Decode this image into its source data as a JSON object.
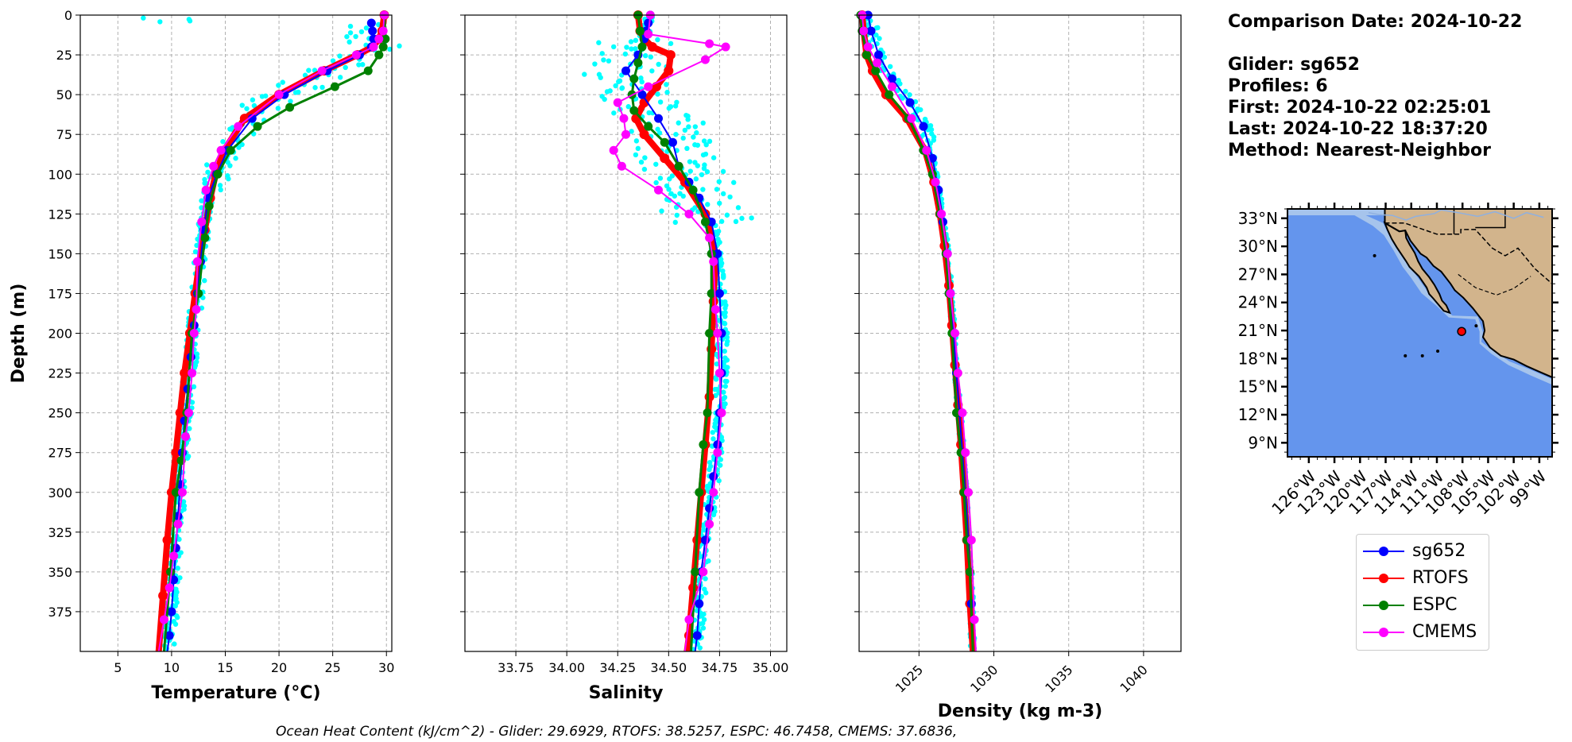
{
  "info": {
    "comparison_date": "Comparison Date: 2024-10-22",
    "glider": "Glider: sg652",
    "profiles": "Profiles: 6",
    "first": "First: 2024-10-22 02:25:01",
    "last": "Last: 2024-10-22 18:37:20",
    "method": "Method: Nearest-Neighbor"
  },
  "footer": "Ocean Heat Content (kJ/cm^2) - Glider: 29.6929,  RTOFS: 38.5257,  ESPC: 46.7458,  CMEMS: 37.6836,",
  "colors": {
    "glider": "#0000ff",
    "glider_scatter": "#00ffff",
    "rtofs": "#ff0000",
    "espc": "#008000",
    "cmems": "#ff00ff",
    "ocean": "#6495ed",
    "shelf": "#a6c4ec",
    "land": "#d2b48c"
  },
  "legend": [
    {
      "label": "sg652",
      "color": "#0000ff"
    },
    {
      "label": "RTOFS",
      "color": "#ff0000"
    },
    {
      "label": "ESPC",
      "color": "#008000"
    },
    {
      "label": "CMEMS",
      "color": "#ff00ff"
    }
  ],
  "chart_data": [
    {
      "type": "line",
      "xlabel": "Temperature (°C)",
      "ylabel": "Depth (m)",
      "xlim": [
        1.5,
        30.5
      ],
      "ylim": [
        400,
        0
      ],
      "xticks": [
        5,
        10,
        15,
        20,
        25,
        30
      ],
      "yticks": [
        0,
        25,
        50,
        75,
        100,
        125,
        150,
        175,
        200,
        225,
        250,
        275,
        300,
        325,
        350,
        375
      ],
      "grid": true,
      "series": [
        {
          "name": "sg652",
          "x": [
            28.6,
            28.7,
            28.8,
            28.6,
            27.5,
            24.5,
            20.5,
            17.5,
            15.2,
            14.2,
            13.4,
            13.0,
            12.7,
            12.4,
            12.1,
            11.8,
            11.5,
            11.2,
            11.0,
            10.8,
            10.6,
            10.4,
            10.2,
            10.0,
            9.8,
            9.6
          ],
          "y": [
            5,
            10,
            15,
            20,
            25,
            35,
            50,
            65,
            85,
            100,
            115,
            135,
            155,
            175,
            195,
            215,
            235,
            255,
            275,
            295,
            315,
            335,
            355,
            375,
            390,
            400
          ]
        },
        {
          "name": "RTOFS",
          "x": [
            29.8,
            29.6,
            29.3,
            28.7,
            27.3,
            24.2,
            20.0,
            16.8,
            14.9,
            14.1,
            13.6,
            13.1,
            12.6,
            12.2,
            11.7,
            11.2,
            10.8,
            10.4,
            10.0,
            9.6,
            9.2,
            8.8
          ],
          "y": [
            0,
            10,
            15,
            20,
            25,
            35,
            50,
            65,
            85,
            100,
            115,
            135,
            155,
            175,
            200,
            225,
            250,
            275,
            300,
            330,
            365,
            400
          ]
        },
        {
          "name": "ESPC",
          "x": [
            29.8,
            29.9,
            29.7,
            29.3,
            28.3,
            25.2,
            21.0,
            18.0,
            15.5,
            14.3,
            13.5,
            13.1,
            12.5,
            11.9,
            11.4,
            10.9,
            10.4,
            9.9,
            9.3
          ],
          "y": [
            0,
            15,
            20,
            25,
            35,
            45,
            58,
            70,
            85,
            100,
            120,
            140,
            175,
            200,
            250,
            280,
            300,
            350,
            400
          ]
        },
        {
          "name": "CMEMS",
          "x": [
            29.8,
            29.7,
            29.3,
            28.8,
            27.2,
            24.0,
            20.0,
            16.2,
            14.6,
            13.9,
            13.2,
            12.8,
            12.4,
            12.3,
            12.1,
            11.9,
            11.6,
            11.3,
            11.0,
            10.6,
            10.2,
            9.8,
            9.3,
            8.8
          ],
          "y": [
            0,
            10,
            15,
            20,
            25,
            35,
            50,
            70,
            85,
            95,
            110,
            130,
            155,
            185,
            200,
            225,
            250,
            265,
            300,
            320,
            340,
            360,
            380,
            400
          ]
        }
      ],
      "cast_scatter": {
        "name": "sg652 profiles",
        "t_min_offset": -1.5,
        "t_max_offset": 1.5
      }
    },
    {
      "type": "line",
      "xlabel": "Salinity",
      "xlim": [
        33.5,
        35.08
      ],
      "ylim": [
        400,
        0
      ],
      "xticks": [
        33.75,
        34.0,
        34.25,
        34.5,
        34.75,
        35.0
      ],
      "yticks": [
        0,
        25,
        50,
        75,
        100,
        125,
        150,
        175,
        200,
        225,
        250,
        275,
        300,
        325,
        350,
        375
      ],
      "grid": true,
      "series": [
        {
          "name": "sg652",
          "x": [
            34.41,
            34.4,
            34.39,
            34.38,
            34.35,
            34.29,
            34.37,
            34.45,
            34.52,
            34.55,
            34.6,
            34.65,
            34.71,
            34.74,
            34.75,
            34.76,
            34.76,
            34.75,
            34.74,
            34.72,
            34.7,
            34.68,
            34.66,
            34.65,
            34.64,
            34.63
          ],
          "y": [
            0,
            5,
            10,
            15,
            25,
            35,
            50,
            65,
            80,
            95,
            105,
            115,
            130,
            150,
            175,
            200,
            225,
            250,
            270,
            290,
            310,
            330,
            350,
            370,
            390,
            400
          ]
        },
        {
          "name": "RTOFS",
          "x": [
            34.35,
            34.36,
            34.38,
            34.42,
            34.51,
            34.5,
            34.44,
            34.38,
            34.34,
            34.38,
            34.48,
            34.58,
            34.68,
            34.73,
            34.72,
            34.71,
            34.7,
            34.68,
            34.66,
            34.64,
            34.62,
            34.6,
            34.59
          ],
          "y": [
            0,
            10,
            15,
            20,
            25,
            35,
            45,
            55,
            65,
            75,
            90,
            105,
            125,
            150,
            180,
            210,
            240,
            270,
            300,
            330,
            360,
            390,
            400
          ]
        },
        {
          "name": "ESPC",
          "x": [
            34.35,
            34.36,
            34.37,
            34.35,
            34.33,
            34.32,
            34.33,
            34.4,
            34.48,
            34.55,
            34.62,
            34.68,
            34.71,
            34.71,
            34.7,
            34.69,
            34.67,
            34.65,
            34.63,
            34.61
          ],
          "y": [
            0,
            10,
            20,
            30,
            40,
            50,
            60,
            70,
            80,
            95,
            110,
            130,
            150,
            175,
            200,
            250,
            270,
            300,
            350,
            400
          ]
        },
        {
          "name": "CMEMS",
          "x": [
            34.41,
            34.4,
            34.7,
            34.78,
            34.68,
            34.4,
            34.25,
            34.28,
            34.29,
            34.23,
            34.27,
            34.45,
            34.6,
            34.7,
            34.72,
            34.73,
            34.74,
            34.75,
            34.76,
            34.74,
            34.72,
            34.7,
            34.67,
            34.6,
            34.58
          ],
          "y": [
            0,
            12,
            18,
            20,
            28,
            45,
            55,
            65,
            75,
            85,
            95,
            110,
            125,
            140,
            155,
            185,
            200,
            225,
            250,
            275,
            300,
            320,
            350,
            380,
            400
          ]
        }
      ],
      "cast_scatter": {
        "name": "sg652 profiles"
      }
    },
    {
      "type": "line",
      "xlabel": "Density (kg m-3)",
      "xlim": [
        1021,
        1042.5
      ],
      "ylim": [
        400,
        0
      ],
      "xticks": [
        1025,
        1030,
        1035,
        1040
      ],
      "yticks": [
        0,
        25,
        50,
        75,
        100,
        125,
        150,
        175,
        200,
        225,
        250,
        275,
        300,
        325,
        350,
        375
      ],
      "grid": true,
      "series": [
        {
          "name": "sg652",
          "x": [
            1021.6,
            1021.8,
            1022.3,
            1023.2,
            1024.4,
            1025.3,
            1025.9,
            1026.3,
            1026.6,
            1026.9,
            1027.1,
            1027.3,
            1027.5,
            1027.7,
            1027.9,
            1028.1,
            1028.3,
            1028.5,
            1028.6
          ],
          "y": [
            0,
            10,
            25,
            40,
            55,
            70,
            90,
            110,
            130,
            150,
            175,
            200,
            225,
            250,
            275,
            300,
            330,
            370,
            400
          ]
        },
        {
          "name": "RTOFS",
          "x": [
            1021.2,
            1021.3,
            1021.5,
            1021.9,
            1022.8,
            1024.2,
            1025.4,
            1026.0,
            1026.4,
            1026.7,
            1027.0,
            1027.2,
            1027.4,
            1027.6,
            1027.8,
            1028.0,
            1028.2,
            1028.4,
            1028.6
          ],
          "y": [
            0,
            10,
            25,
            35,
            50,
            65,
            85,
            105,
            125,
            145,
            170,
            195,
            220,
            245,
            270,
            300,
            330,
            370,
            400
          ]
        },
        {
          "name": "ESPC",
          "x": [
            1021.1,
            1021.2,
            1021.5,
            1022.1,
            1023.0,
            1024.3,
            1025.3,
            1025.9,
            1026.4,
            1026.8,
            1027.0,
            1027.2,
            1027.5,
            1027.8,
            1028.0,
            1028.2,
            1028.4,
            1028.6
          ],
          "y": [
            0,
            10,
            25,
            35,
            50,
            65,
            85,
            100,
            125,
            150,
            175,
            200,
            250,
            275,
            300,
            330,
            350,
            400
          ]
        },
        {
          "name": "CMEMS",
          "x": [
            1021.2,
            1021.3,
            1021.6,
            1022.2,
            1023.2,
            1024.5,
            1025.5,
            1026.1,
            1026.5,
            1026.9,
            1027.1,
            1027.4,
            1027.6,
            1027.9,
            1028.1,
            1028.3,
            1028.5,
            1028.7,
            1028.8
          ],
          "y": [
            0,
            10,
            20,
            30,
            45,
            65,
            85,
            105,
            125,
            150,
            175,
            200,
            225,
            250,
            275,
            300,
            330,
            380,
            400
          ]
        }
      ],
      "cast_scatter": {
        "name": "sg652 profiles"
      }
    },
    {
      "type": "map",
      "lat_ticks": [
        "33°N",
        "30°N",
        "27°N",
        "24°N",
        "21°N",
        "18°N",
        "15°N",
        "12°N",
        "9°N"
      ],
      "lon_ticks": [
        "126°W",
        "123°W",
        "120°W",
        "117°W",
        "114°W",
        "111°W",
        "108°W",
        "105°W",
        "102°W",
        "99°W"
      ],
      "extent": {
        "lon": [
          -128.5,
          -97.5
        ],
        "lat": [
          7.5,
          34.0
        ]
      },
      "glider_position": {
        "lon": -108.1,
        "lat": 20.9
      }
    }
  ]
}
